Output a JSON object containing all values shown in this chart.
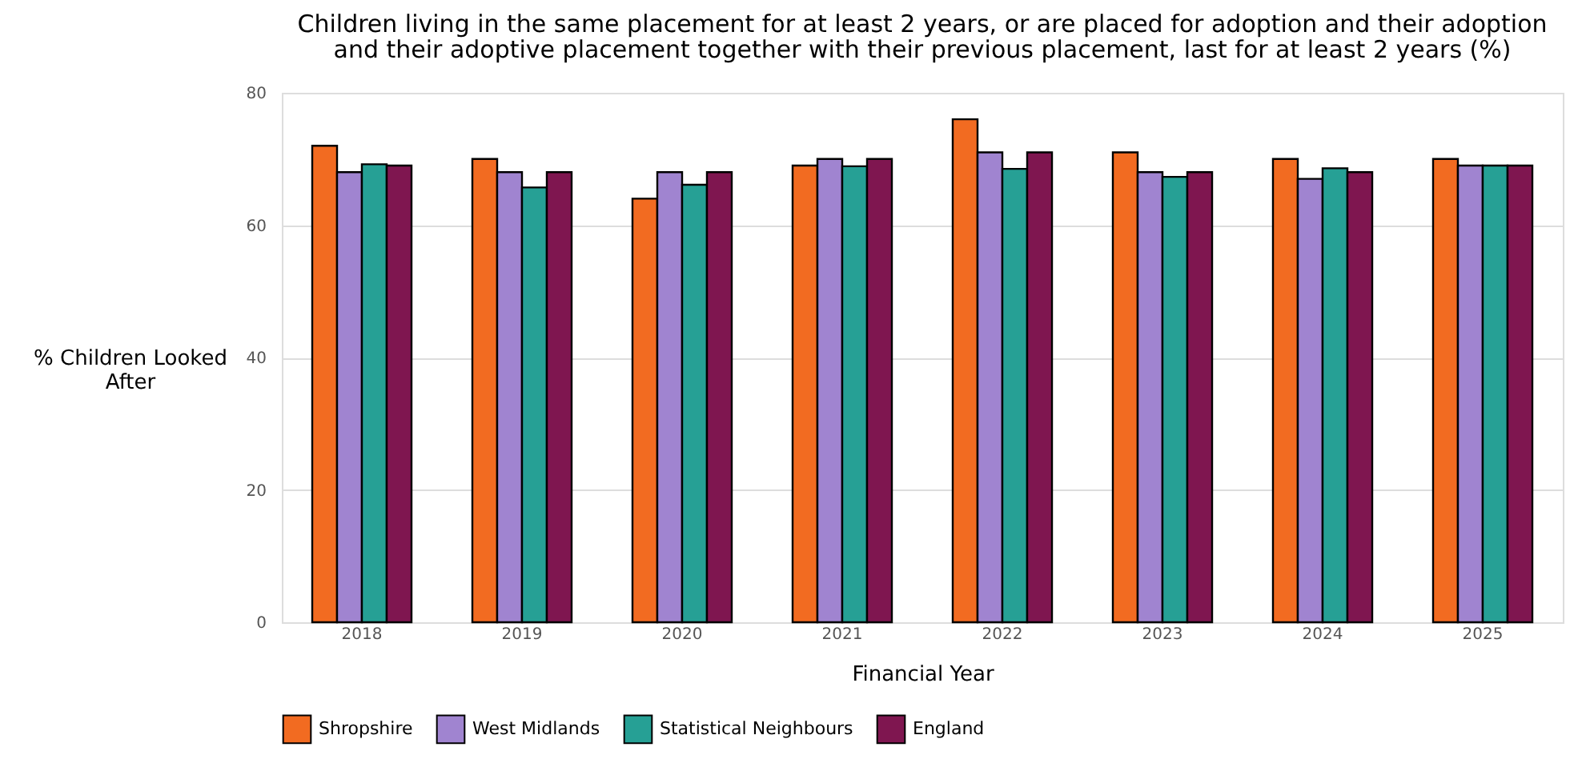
{
  "chart_data": {
    "type": "bar",
    "title": "Children living in the same placement for at least 2 years, or are placed for adoption and their adoption and their adoptive placement together with their previous placement, last for at least 2 years (%)",
    "xlabel": "Financial Year",
    "ylabel": "% Children Looked After",
    "categories": [
      "2018",
      "2019",
      "2020",
      "2021",
      "2022",
      "2023",
      "2024",
      "2025"
    ],
    "series": [
      {
        "name": "Shropshire",
        "color": "#f26b21",
        "values": [
          72,
          70,
          64,
          69,
          76,
          71,
          70,
          70
        ]
      },
      {
        "name": "West Midlands",
        "color": "#a084d0",
        "values": [
          68,
          68,
          68,
          70,
          71,
          68,
          67,
          69
        ]
      },
      {
        "name": "Statistical Neighbours",
        "color": "#26a095",
        "values": [
          69.2,
          65.7,
          66.1,
          68.9,
          68.5,
          67.3,
          68.6,
          69
        ]
      },
      {
        "name": "England",
        "color": "#7f1650",
        "values": [
          69,
          68,
          68,
          70,
          71,
          68,
          68,
          69
        ]
      }
    ],
    "ylim": [
      0,
      80
    ],
    "yticks": [
      0,
      20,
      40,
      60,
      80
    ],
    "grid": "y",
    "legend": "bottom"
  }
}
